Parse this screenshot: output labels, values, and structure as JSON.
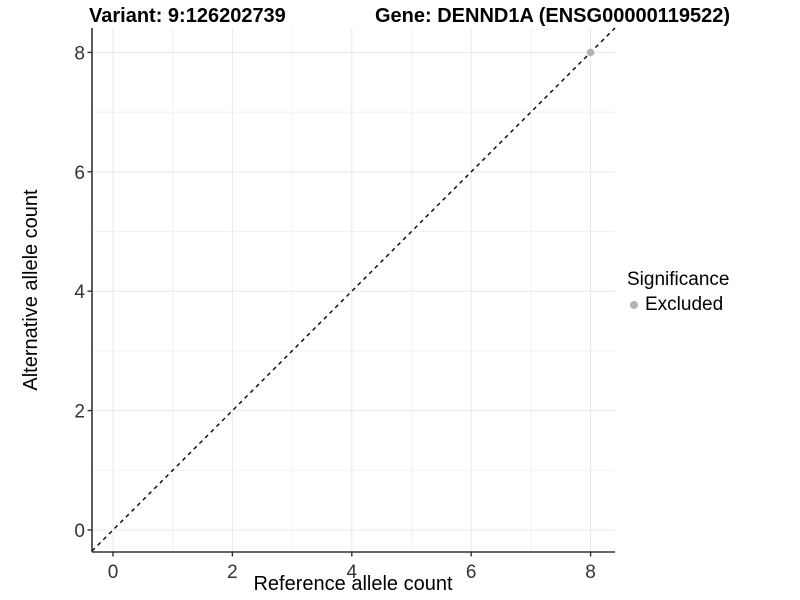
{
  "title": {
    "variant_label": "Variant: 9:126202739",
    "gene_label": "Gene: DENND1A (ENSG00000119522)"
  },
  "chart_data": {
    "type": "scatter",
    "title": "Variant: 9:126202739   Gene: DENND1A (ENSG00000119522)",
    "xlabel": "Reference allele count",
    "ylabel": "Alternative allele count",
    "xlim": [
      -0.4,
      8.4
    ],
    "ylim": [
      -0.4,
      8.4
    ],
    "x_ticks": [
      0,
      2,
      4,
      6,
      8
    ],
    "y_ticks": [
      0,
      2,
      4,
      6,
      8
    ],
    "x_minor_ticks": [
      1,
      3,
      5,
      7
    ],
    "y_minor_ticks": [
      1,
      3,
      5,
      7
    ],
    "grid": true,
    "legend_position": "right",
    "reference_line": {
      "kind": "identity",
      "equation": "y = x",
      "style": "dashed",
      "color": "#000000"
    },
    "series": [
      {
        "name": "Excluded",
        "color": "#b3b3b3",
        "points": [
          {
            "x": 8,
            "y": 8
          }
        ]
      }
    ],
    "legend": {
      "title": "Significance",
      "items": [
        {
          "label": "Excluded",
          "color": "#b3b3b3"
        }
      ]
    }
  },
  "colors": {
    "background": "#ffffff",
    "grid_major": "#e8e8e8",
    "grid_minor": "#f2f2f2",
    "axis_line": "#333333",
    "tick_label": "#333333",
    "reference_line": "#000000",
    "point": "#b3b3b3"
  }
}
